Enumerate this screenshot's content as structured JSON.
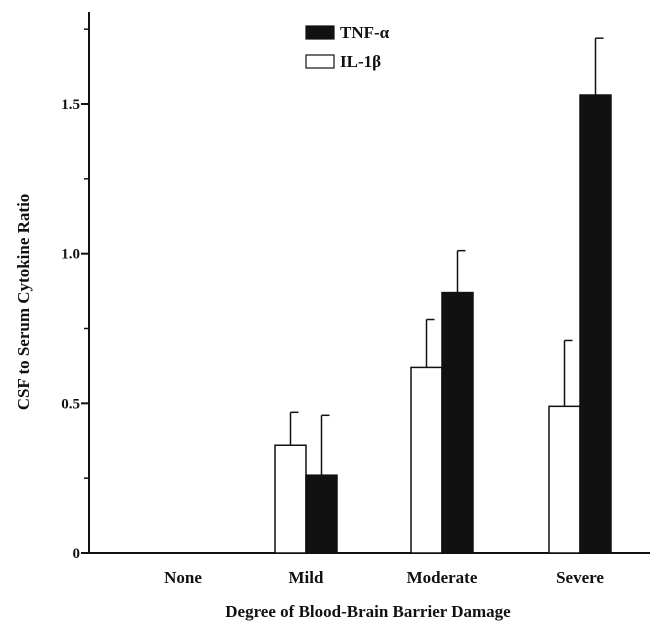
{
  "chart_data": {
    "type": "bar",
    "xlabel": "Degree of Blood-Brain Barrier Damage",
    "ylabel": "CSF to Serum Cytokine Ratio",
    "categories": [
      "None",
      "Mild",
      "Moderate",
      "Severe"
    ],
    "series": [
      {
        "name": "IL-1β",
        "color": "#ffffff",
        "values": [
          null,
          0.36,
          0.62,
          0.49
        ],
        "errors": [
          null,
          0.11,
          0.16,
          0.22
        ]
      },
      {
        "name": "TNF-α",
        "color": "#111111",
        "values": [
          null,
          0.26,
          0.87,
          1.53
        ],
        "errors": [
          null,
          0.2,
          0.14,
          0.19
        ]
      }
    ],
    "legend_order": [
      "TNF-α",
      "IL-1β"
    ],
    "ylim": [
      0,
      1.8
    ],
    "yticks": [
      {
        "value": 0,
        "label": "0"
      },
      {
        "value": 0.5,
        "label": "0.5"
      },
      {
        "value": 1.0,
        "label": "1.0"
      },
      {
        "value": 1.5,
        "label": "1.5"
      }
    ],
    "minor_ticks": [
      0.25,
      0.75,
      1.25,
      1.75
    ],
    "legend_position": "top-center",
    "grid": false
  }
}
